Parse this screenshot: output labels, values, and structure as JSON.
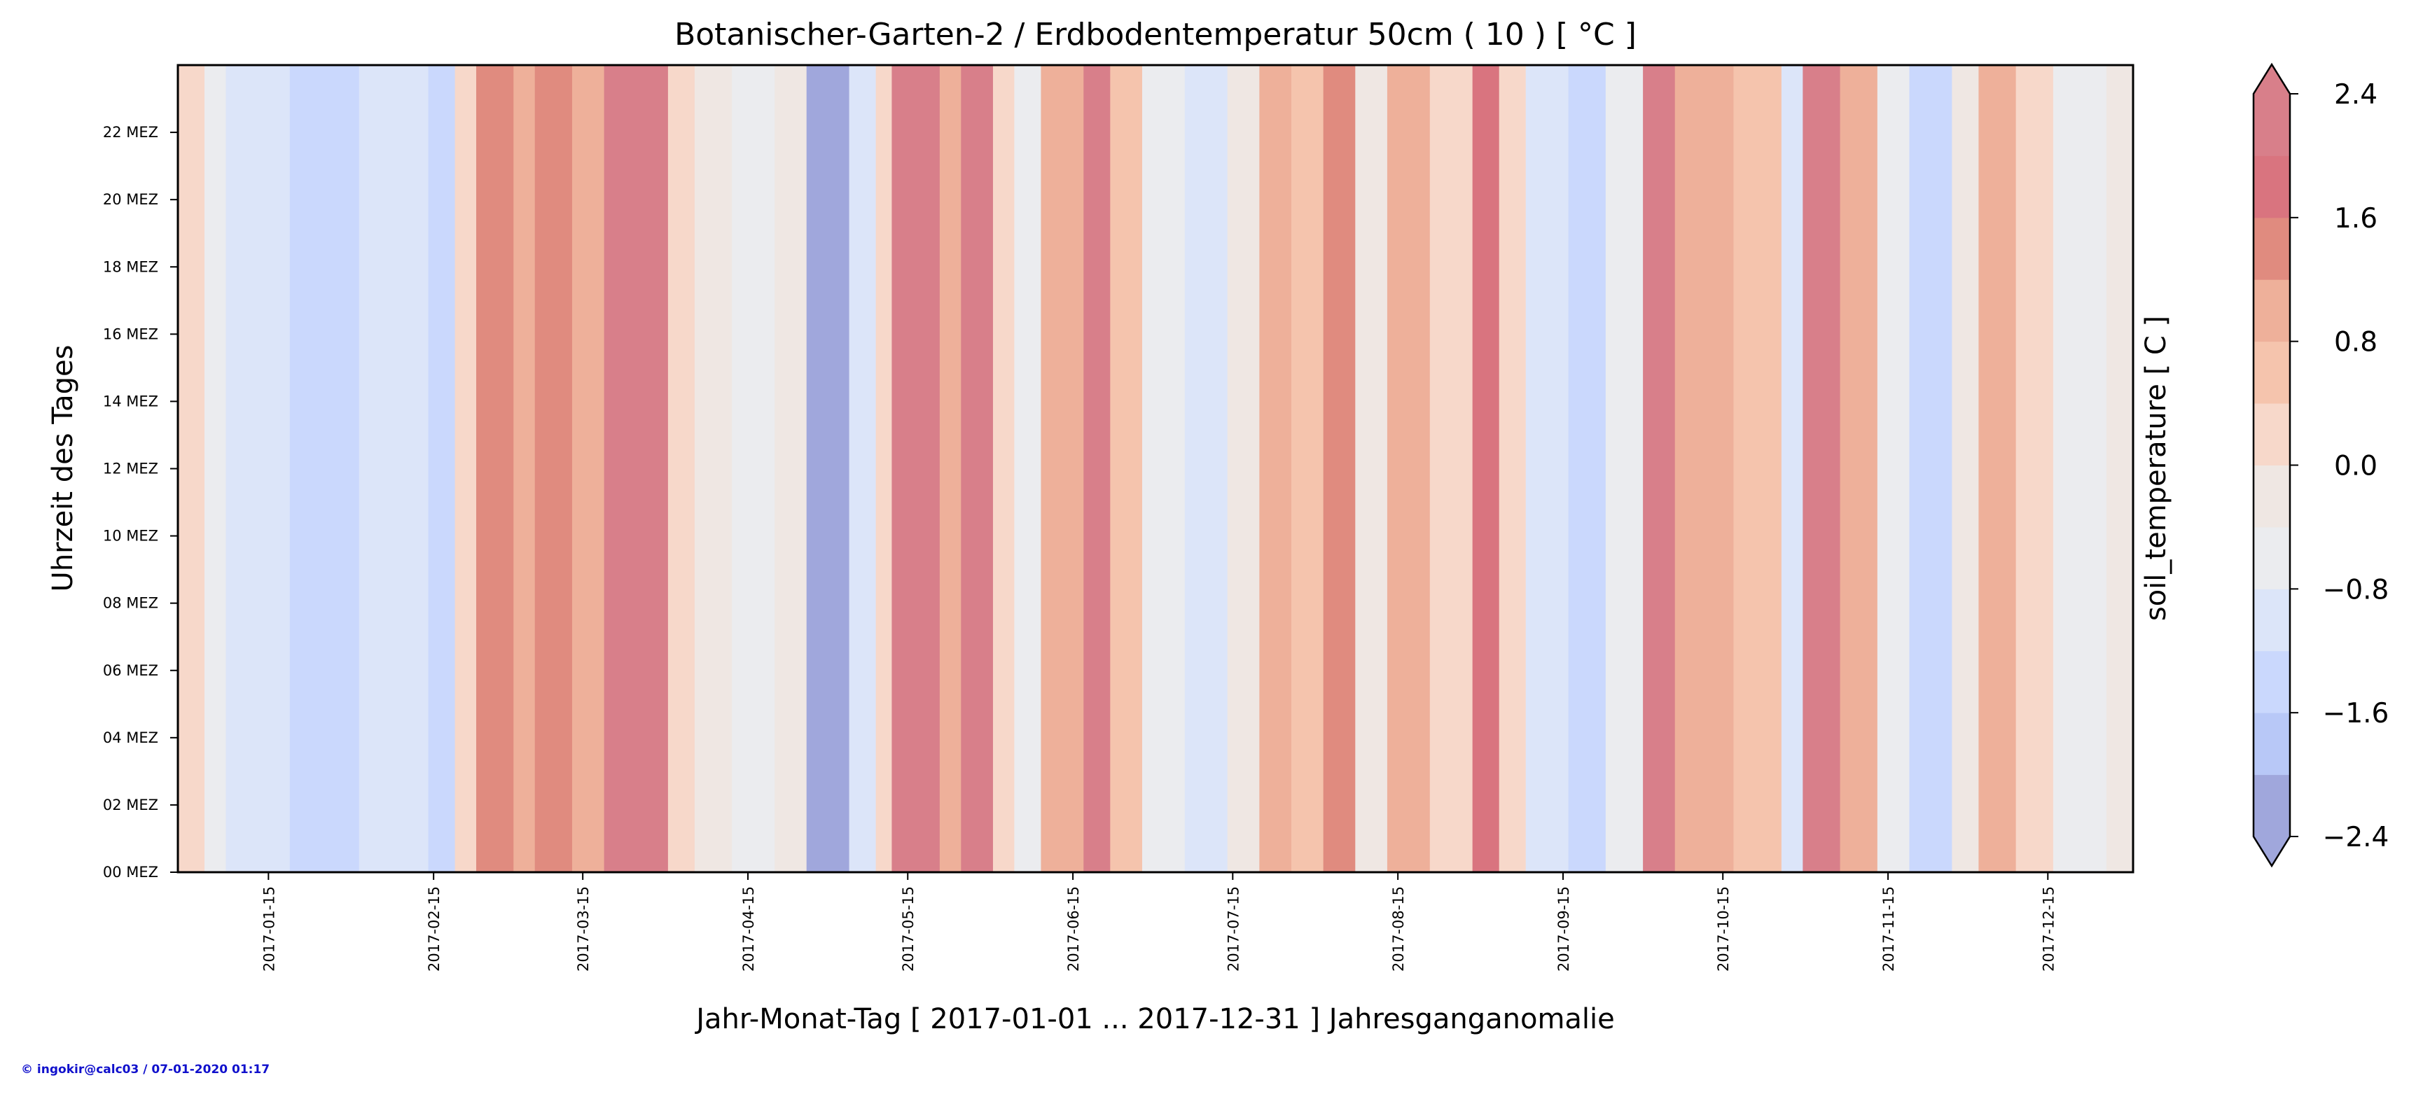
{
  "chart_data": {
    "type": "heatmap",
    "title": "Botanischer-Garten-2 / Erdbodentemperatur 50cm ( 10 ) [ °C ]",
    "xlabel": "Jahr-Monat-Tag [ 2017-01-01 ... 2017-12-31 ] Jahresganganomalie",
    "ylabel": "Uhrzeit des Tages",
    "x_range": [
      "2016-12-29",
      "2017-12-31"
    ],
    "y_range_hours": [
      0,
      24
    ],
    "x_ticks": [
      "2017-01-15",
      "2017-02-15",
      "2017-03-15",
      "2017-04-15",
      "2017-05-15",
      "2017-06-15",
      "2017-07-15",
      "2017-08-15",
      "2017-09-15",
      "2017-10-15",
      "2017-11-15",
      "2017-12-15"
    ],
    "y_ticks": [
      {
        "hour": 0,
        "label": "00 MEZ"
      },
      {
        "hour": 2,
        "label": "02 MEZ"
      },
      {
        "hour": 4,
        "label": "04 MEZ"
      },
      {
        "hour": 6,
        "label": "06 MEZ"
      },
      {
        "hour": 8,
        "label": "08 MEZ"
      },
      {
        "hour": 10,
        "label": "10 MEZ"
      },
      {
        "hour": 12,
        "label": "12 MEZ"
      },
      {
        "hour": 14,
        "label": "14 MEZ"
      },
      {
        "hour": 16,
        "label": "16 MEZ"
      },
      {
        "hour": 18,
        "label": "18 MEZ"
      },
      {
        "hour": 20,
        "label": "20 MEZ"
      },
      {
        "hour": 22,
        "label": "22 MEZ"
      }
    ],
    "colorbar": {
      "label": "soil_temperature [ C ]",
      "levels": [
        -2.4,
        -2.0,
        -1.6,
        -1.2,
        -0.8,
        -0.4,
        0.0,
        0.4,
        0.8,
        1.2,
        1.6,
        2.0,
        2.4
      ],
      "colors": [
        "#a0a7dc",
        "#b8c8f7",
        "#cad8fd",
        "#dce5f9",
        "#ebecef",
        "#efe7e3",
        "#f7d8ca",
        "#f5c4ad",
        "#eeb09a",
        "#e08b7f",
        "#d9747f",
        "#d87f8a"
      ],
      "tick_values": [
        -2.4,
        -1.6,
        -0.8,
        0.0,
        0.8,
        1.6,
        2.4
      ],
      "tick_labels": [
        "−2.4",
        "−1.6",
        "−0.8",
        "0.0",
        "0.8",
        "1.6",
        "2.4"
      ]
    },
    "bands": [
      {
        "start": "2016-12-29",
        "end": "2017-01-03",
        "value": 0.1
      },
      {
        "start": "2017-01-03",
        "end": "2017-01-07",
        "value": -0.6
      },
      {
        "start": "2017-01-07",
        "end": "2017-01-19",
        "value": -1.0
      },
      {
        "start": "2017-01-19",
        "end": "2017-02-01",
        "value": -1.5
      },
      {
        "start": "2017-02-01",
        "end": "2017-02-14",
        "value": -1.0
      },
      {
        "start": "2017-02-14",
        "end": "2017-02-19",
        "value": -1.3
      },
      {
        "start": "2017-02-19",
        "end": "2017-02-23",
        "value": 0.3
      },
      {
        "start": "2017-02-23",
        "end": "2017-03-02",
        "value": 1.3
      },
      {
        "start": "2017-03-02",
        "end": "2017-03-06",
        "value": 0.9
      },
      {
        "start": "2017-03-06",
        "end": "2017-03-13",
        "value": 1.2
      },
      {
        "start": "2017-03-13",
        "end": "2017-03-19",
        "value": 0.9
      },
      {
        "start": "2017-03-19",
        "end": "2017-03-31",
        "value": 2.2
      },
      {
        "start": "2017-03-31",
        "end": "2017-04-05",
        "value": 0.3
      },
      {
        "start": "2017-04-05",
        "end": "2017-04-12",
        "value": -0.3
      },
      {
        "start": "2017-04-12",
        "end": "2017-04-20",
        "value": -0.8
      },
      {
        "start": "2017-04-20",
        "end": "2017-04-26",
        "value": -0.3
      },
      {
        "start": "2017-04-26",
        "end": "2017-05-04",
        "value": -2.2
      },
      {
        "start": "2017-05-04",
        "end": "2017-05-09",
        "value": -1.1
      },
      {
        "start": "2017-05-09",
        "end": "2017-05-12",
        "value": 0.2
      },
      {
        "start": "2017-05-12",
        "end": "2017-05-21",
        "value": 2.2
      },
      {
        "start": "2017-05-21",
        "end": "2017-05-25",
        "value": 1.1
      },
      {
        "start": "2017-05-25",
        "end": "2017-05-31",
        "value": 2.2
      },
      {
        "start": "2017-05-31",
        "end": "2017-06-04",
        "value": 0.0
      },
      {
        "start": "2017-06-04",
        "end": "2017-06-09",
        "value": -0.6
      },
      {
        "start": "2017-06-09",
        "end": "2017-06-17",
        "value": 0.9
      },
      {
        "start": "2017-06-17",
        "end": "2017-06-22",
        "value": 2.2
      },
      {
        "start": "2017-06-22",
        "end": "2017-06-28",
        "value": 0.7
      },
      {
        "start": "2017-06-28",
        "end": "2017-07-06",
        "value": -0.6
      },
      {
        "start": "2017-07-06",
        "end": "2017-07-14",
        "value": -1.0
      },
      {
        "start": "2017-07-14",
        "end": "2017-07-20",
        "value": -0.3
      },
      {
        "start": "2017-07-20",
        "end": "2017-07-26",
        "value": 1.1
      },
      {
        "start": "2017-07-26",
        "end": "2017-08-01",
        "value": 0.6
      },
      {
        "start": "2017-08-01",
        "end": "2017-08-07",
        "value": 1.3
      },
      {
        "start": "2017-08-07",
        "end": "2017-08-13",
        "value": -0.3
      },
      {
        "start": "2017-08-13",
        "end": "2017-08-21",
        "value": 0.9
      },
      {
        "start": "2017-08-21",
        "end": "2017-08-29",
        "value": 0.2
      },
      {
        "start": "2017-08-29",
        "end": "2017-09-03",
        "value": 1.6
      },
      {
        "start": "2017-09-03",
        "end": "2017-09-08",
        "value": 0.3
      },
      {
        "start": "2017-09-08",
        "end": "2017-09-16",
        "value": -0.9
      },
      {
        "start": "2017-09-16",
        "end": "2017-09-23",
        "value": -1.4
      },
      {
        "start": "2017-09-23",
        "end": "2017-09-30",
        "value": -0.6
      },
      {
        "start": "2017-09-30",
        "end": "2017-10-06",
        "value": 2.0
      },
      {
        "start": "2017-10-06",
        "end": "2017-10-17",
        "value": 0.9
      },
      {
        "start": "2017-10-17",
        "end": "2017-10-26",
        "value": 0.5
      },
      {
        "start": "2017-10-26",
        "end": "2017-10-30",
        "value": -0.9
      },
      {
        "start": "2017-10-30",
        "end": "2017-11-06",
        "value": 2.0
      },
      {
        "start": "2017-11-06",
        "end": "2017-11-13",
        "value": 0.9
      },
      {
        "start": "2017-11-13",
        "end": "2017-11-19",
        "value": -0.5
      },
      {
        "start": "2017-11-19",
        "end": "2017-11-27",
        "value": -1.3
      },
      {
        "start": "2017-11-27",
        "end": "2017-12-02",
        "value": -0.2
      },
      {
        "start": "2017-12-02",
        "end": "2017-12-09",
        "value": 1.1
      },
      {
        "start": "2017-12-09",
        "end": "2017-12-16",
        "value": 0.3
      },
      {
        "start": "2017-12-16",
        "end": "2017-12-23",
        "value": -0.5
      },
      {
        "start": "2017-12-23",
        "end": "2017-12-26",
        "value": -0.8
      },
      {
        "start": "2017-12-26",
        "end": "2017-12-31",
        "value": -0.3
      }
    ]
  },
  "credit": "© ingokir@calc03 / 07-01-2020 01:17"
}
